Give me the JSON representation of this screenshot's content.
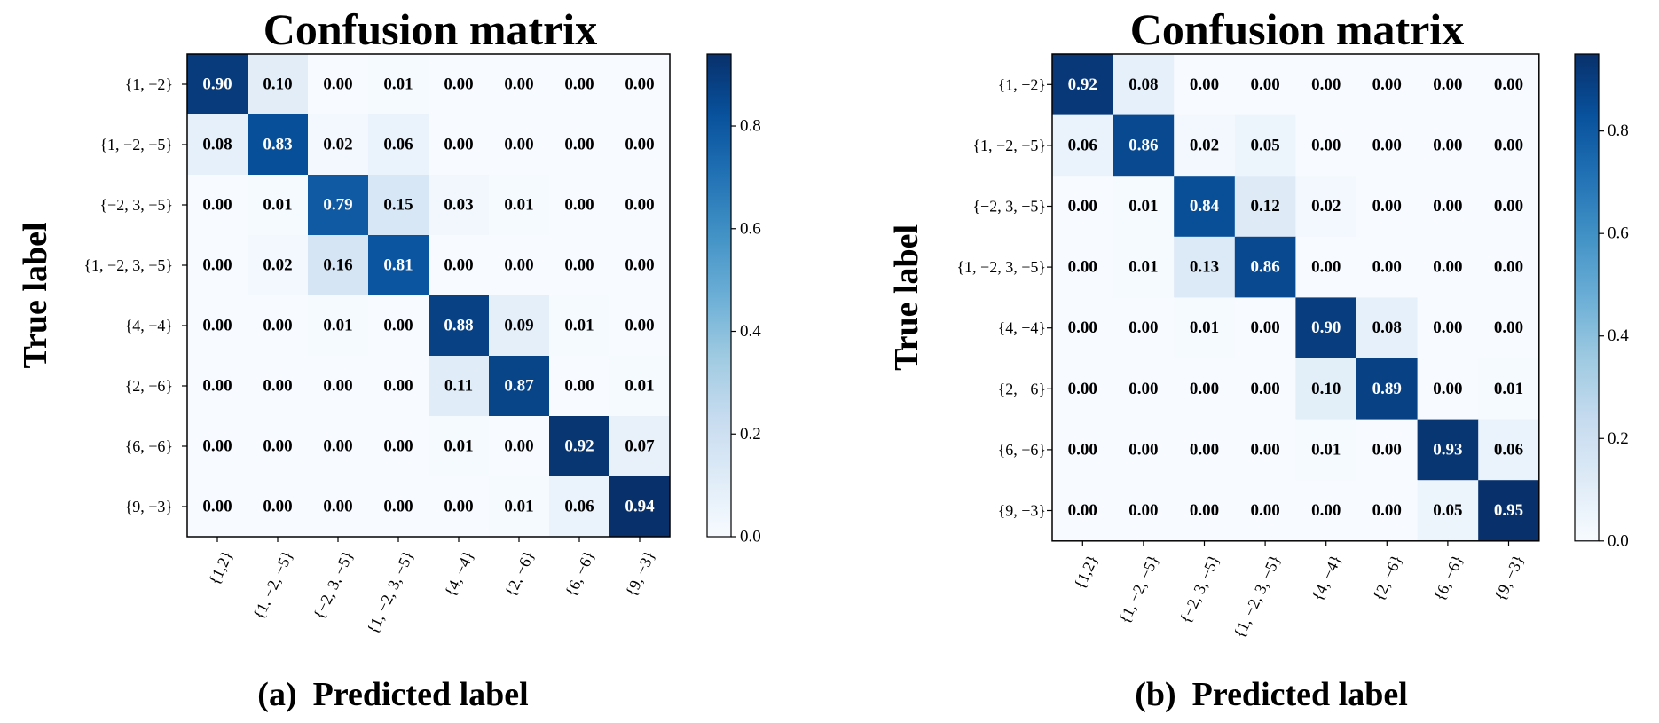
{
  "chart_data": [
    {
      "type": "heatmap",
      "title": "Confusion matrix",
      "ylabel": "True label",
      "caption_prefix": "(a)",
      "xlabel": "Predicted label",
      "row_labels": [
        "{1, −2}",
        "{1, −2, −5}",
        "{−2, 3, −5}",
        "{1, −2, 3, −5}",
        "{4, −4}",
        "{2, −6}",
        "{6, −6}",
        "{9, −3}"
      ],
      "col_labels": [
        "{1,2}",
        "{1, −2, −5}",
        "{−2, 3, −5}",
        "{1, −2, 3, −5}",
        "{4, −4}",
        "{2, −6}",
        "{6, −6}",
        "{9, −3}"
      ],
      "values": [
        [
          0.9,
          0.1,
          0.0,
          0.01,
          0.0,
          0.0,
          0.0,
          0.0
        ],
        [
          0.08,
          0.83,
          0.02,
          0.06,
          0.0,
          0.0,
          0.0,
          0.0
        ],
        [
          0.0,
          0.01,
          0.79,
          0.15,
          0.03,
          0.01,
          0.0,
          0.0
        ],
        [
          0.0,
          0.02,
          0.16,
          0.81,
          0.0,
          0.0,
          0.0,
          0.0
        ],
        [
          0.0,
          0.0,
          0.01,
          0.0,
          0.88,
          0.09,
          0.01,
          0.0
        ],
        [
          0.0,
          0.0,
          0.0,
          0.0,
          0.11,
          0.87,
          0.0,
          0.01
        ],
        [
          0.0,
          0.0,
          0.0,
          0.0,
          0.01,
          0.0,
          0.92,
          0.07
        ],
        [
          0.0,
          0.0,
          0.0,
          0.0,
          0.0,
          0.01,
          0.06,
          0.94
        ]
      ],
      "colorbar": {
        "range": [
          0.0,
          0.94
        ],
        "ticks": [
          "0.0",
          "0.2",
          "0.4",
          "0.6",
          "0.8"
        ],
        "colormap": "Blues"
      }
    },
    {
      "type": "heatmap",
      "title": "Confusion matrix",
      "ylabel": "True label",
      "caption_prefix": "(b)",
      "xlabel": "Predicted label",
      "row_labels": [
        "{1, −2}",
        "{1, −2, −5}",
        "{−2, 3, −5}",
        "{1, −2, 3, −5}",
        "{4, −4}",
        "{2, −6}",
        "{6, −6}",
        "{9, −3}"
      ],
      "col_labels": [
        "{1,2}",
        "{1, −2, −5}",
        "{−2, 3, −5}",
        "{1, −2, 3, −5}",
        "{4, −4}",
        "{2, −6}",
        "{6, −6}",
        "{9, −3}"
      ],
      "values": [
        [
          0.92,
          0.08,
          0.0,
          0.0,
          0.0,
          0.0,
          0.0,
          0.0
        ],
        [
          0.06,
          0.86,
          0.02,
          0.05,
          0.0,
          0.0,
          0.0,
          0.0
        ],
        [
          0.0,
          0.01,
          0.84,
          0.12,
          0.02,
          0.0,
          0.0,
          0.0
        ],
        [
          0.0,
          0.01,
          0.13,
          0.86,
          0.0,
          0.0,
          0.0,
          0.0
        ],
        [
          0.0,
          0.0,
          0.01,
          0.0,
          0.9,
          0.08,
          0.0,
          0.0
        ],
        [
          0.0,
          0.0,
          0.0,
          0.0,
          0.1,
          0.89,
          0.0,
          0.01
        ],
        [
          0.0,
          0.0,
          0.0,
          0.0,
          0.01,
          0.0,
          0.93,
          0.06
        ],
        [
          0.0,
          0.0,
          0.0,
          0.0,
          0.0,
          0.0,
          0.05,
          0.95
        ]
      ],
      "colorbar": {
        "range": [
          0.0,
          0.95
        ],
        "ticks": [
          "0.0",
          "0.2",
          "0.4",
          "0.6",
          "0.8"
        ],
        "colormap": "Blues"
      }
    }
  ]
}
